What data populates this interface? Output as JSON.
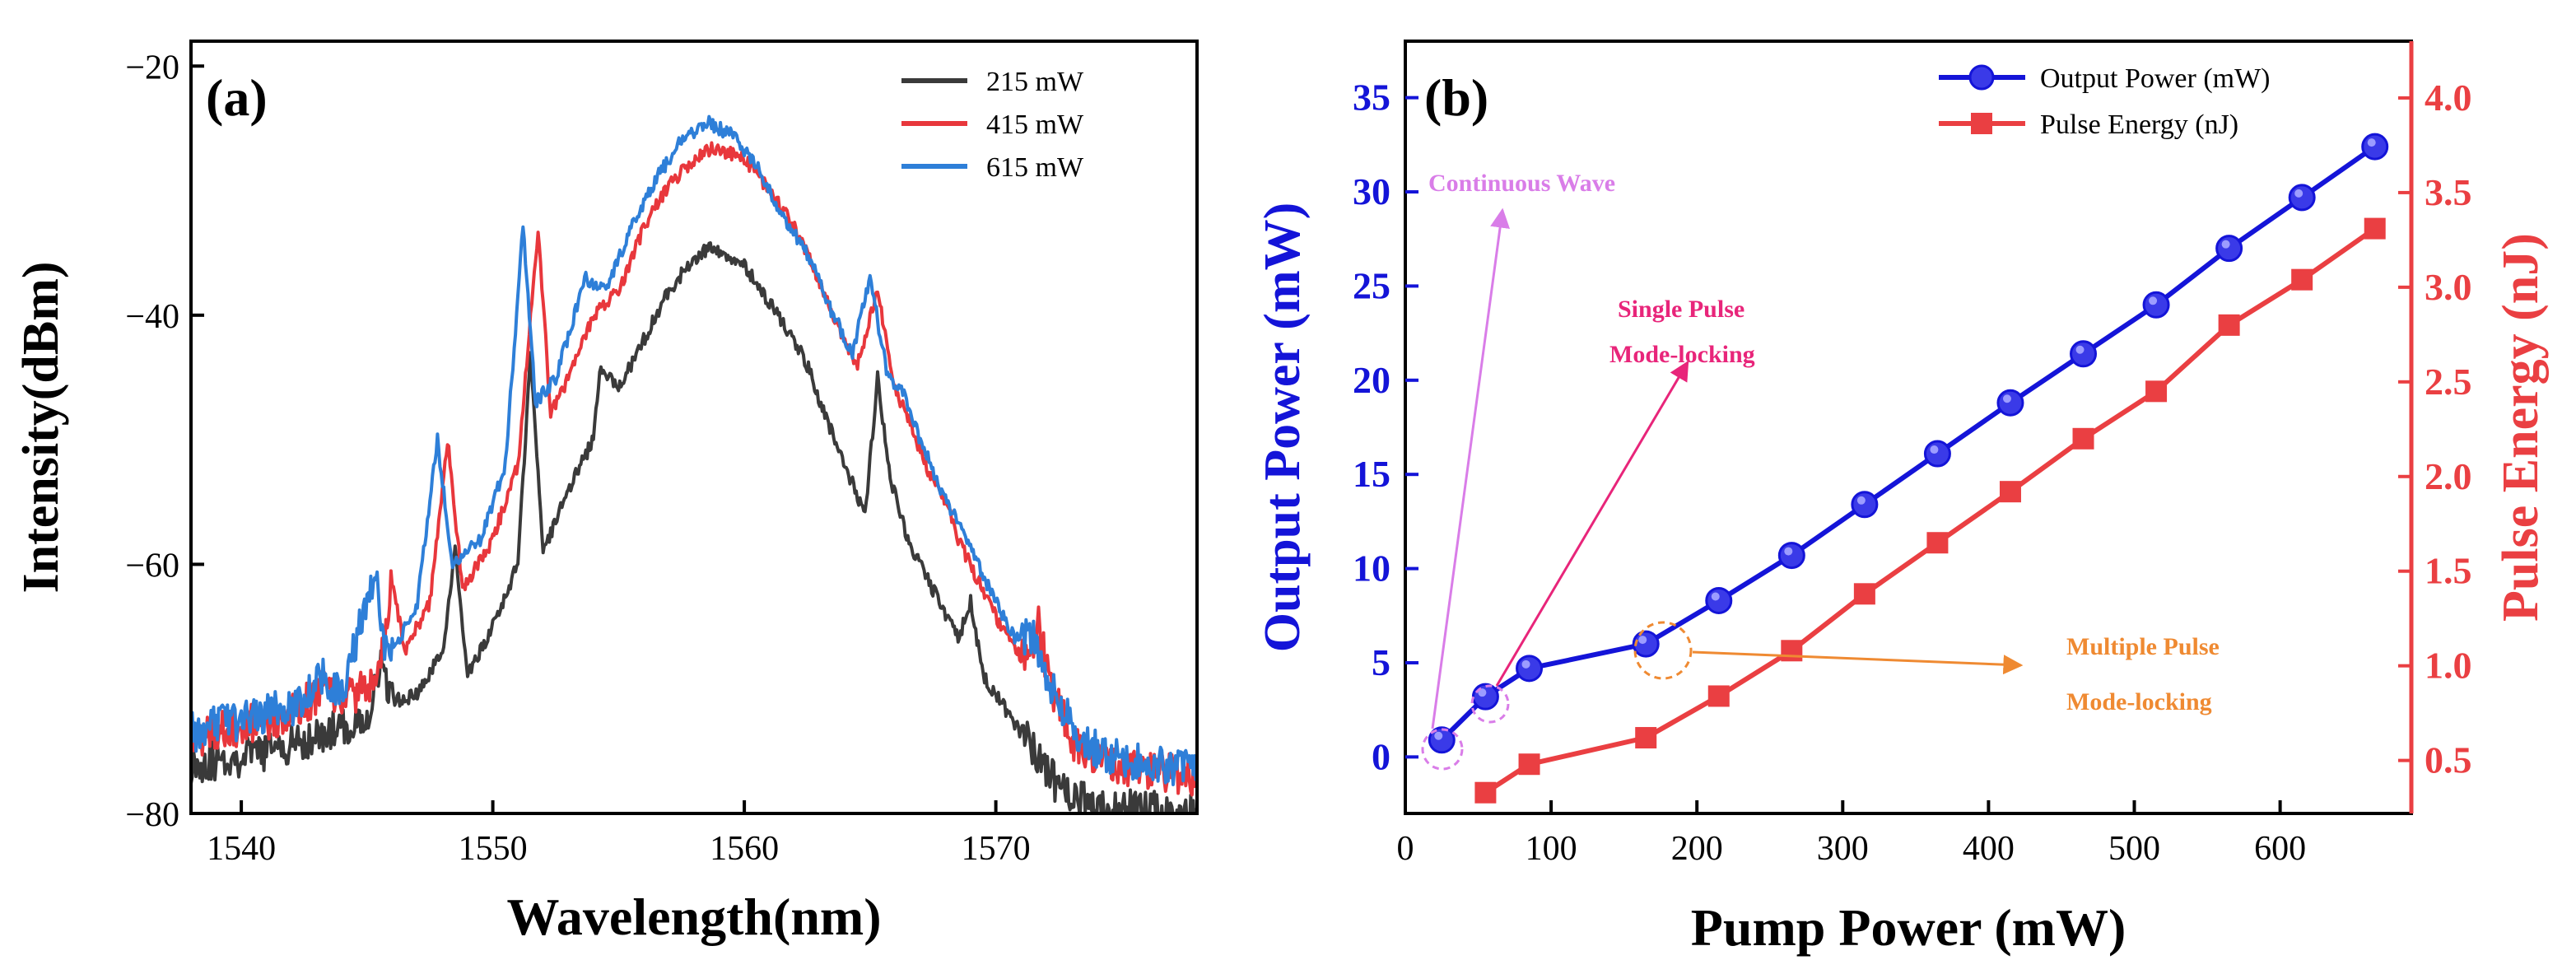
{
  "colors": {
    "series_215": "#3a3a3a",
    "series_415": "#e8373c",
    "series_615": "#2e7fd8",
    "output_power": "#1414d8",
    "pulse_energy": "#ea3f42",
    "cw": "#d97de8",
    "single": "#e8257a",
    "multiple": "#ef8a32"
  },
  "chart_data": [
    {
      "type": "line",
      "panel_label": "(a)",
      "xlabel": "Wavelength(nm)",
      "ylabel": "Intensity(dBm)",
      "xlim": [
        1538,
        1578
      ],
      "ylim": [
        -80,
        -18
      ],
      "xticks": [
        1540,
        1550,
        1560,
        1570
      ],
      "xtick_labels": [
        "1540",
        "1550",
        "1560",
        "1570"
      ],
      "yticks": [
        -80,
        -60,
        -40,
        -20
      ],
      "ytick_labels": [
        "−80",
        "−60",
        "−40",
        "−20"
      ],
      "legend_position": "top-right",
      "series": [
        {
          "name": "215 mW",
          "color_key": "series_215",
          "points": [
            [
              1538,
              -76
            ],
            [
              1540,
              -75.5
            ],
            [
              1542,
              -74.5
            ],
            [
              1543.5,
              -73.5
            ],
            [
              1545,
              -72.5
            ],
            [
              1545.5,
              -68
            ],
            [
              1546,
              -71
            ],
            [
              1547,
              -70.5
            ],
            [
              1548,
              -67
            ],
            [
              1548.5,
              -59
            ],
            [
              1549,
              -69
            ],
            [
              1550,
              -65
            ],
            [
              1551,
              -60
            ],
            [
              1551.5,
              -43
            ],
            [
              1552,
              -59
            ],
            [
              1553,
              -54
            ],
            [
              1554,
              -50
            ],
            [
              1554.3,
              -44
            ],
            [
              1555,
              -46
            ],
            [
              1556,
              -42
            ],
            [
              1557,
              -38
            ],
            [
              1558,
              -35.5
            ],
            [
              1558.7,
              -34.5
            ],
            [
              1560,
              -36
            ],
            [
              1561,
              -39
            ],
            [
              1562,
              -42
            ],
            [
              1562.5,
              -44
            ],
            [
              1563,
              -47
            ],
            [
              1564,
              -52
            ],
            [
              1564.8,
              -56
            ],
            [
              1565.3,
              -45
            ],
            [
              1565.8,
              -53
            ],
            [
              1566.5,
              -58
            ],
            [
              1567.5,
              -62
            ],
            [
              1568.5,
              -66
            ],
            [
              1569,
              -63
            ],
            [
              1569.5,
              -69
            ],
            [
              1570.5,
              -72
            ],
            [
              1571.5,
              -75
            ],
            [
              1572.5,
              -78
            ],
            [
              1574,
              -79.5
            ],
            [
              1578,
              -80
            ]
          ]
        },
        {
          "name": "415 mW",
          "color_key": "series_415",
          "points": [
            [
              1538,
              -74
            ],
            [
              1540,
              -73
            ],
            [
              1542,
              -72
            ],
            [
              1543.3,
              -70
            ],
            [
              1544,
              -71
            ],
            [
              1545.5,
              -69
            ],
            [
              1546,
              -61
            ],
            [
              1546.5,
              -67
            ],
            [
              1547.5,
              -63
            ],
            [
              1548.2,
              -50
            ],
            [
              1548.8,
              -62
            ],
            [
              1550,
              -58
            ],
            [
              1551,
              -52
            ],
            [
              1551.8,
              -33
            ],
            [
              1552.3,
              -48
            ],
            [
              1553,
              -45
            ],
            [
              1554,
              -40
            ],
            [
              1555,
              -38
            ],
            [
              1556,
              -33
            ],
            [
              1557,
              -29.5
            ],
            [
              1558,
              -27.5
            ],
            [
              1558.8,
              -26.5
            ],
            [
              1560,
              -27.5
            ],
            [
              1561,
              -30
            ],
            [
              1562,
              -33
            ],
            [
              1562.7,
              -36
            ],
            [
              1563.5,
              -40
            ],
            [
              1564.5,
              -44
            ],
            [
              1565.3,
              -38
            ],
            [
              1566,
              -46
            ],
            [
              1566.5,
              -48
            ],
            [
              1567.2,
              -52
            ],
            [
              1568,
              -55
            ],
            [
              1568.5,
              -58
            ],
            [
              1569,
              -60
            ],
            [
              1569.7,
              -63
            ],
            [
              1570.5,
              -66
            ],
            [
              1571.2,
              -68
            ],
            [
              1571.7,
              -65
            ],
            [
              1572.2,
              -70
            ],
            [
              1573,
              -74
            ],
            [
              1574,
              -76
            ],
            [
              1576,
              -76.5
            ],
            [
              1578,
              -77
            ]
          ]
        },
        {
          "name": "615 mW",
          "color_key": "series_615",
          "points": [
            [
              1538,
              -73.5
            ],
            [
              1540,
              -72.5
            ],
            [
              1542,
              -71.5
            ],
            [
              1543.3,
              -69
            ],
            [
              1544,
              -70.5
            ],
            [
              1545.3,
              -60.5
            ],
            [
              1545.8,
              -68
            ],
            [
              1547,
              -63
            ],
            [
              1547.8,
              -50
            ],
            [
              1548.4,
              -60
            ],
            [
              1549.5,
              -58
            ],
            [
              1550.5,
              -52
            ],
            [
              1551.2,
              -33
            ],
            [
              1551.7,
              -47
            ],
            [
              1552.5,
              -45
            ],
            [
              1553.7,
              -37
            ],
            [
              1554.5,
              -38
            ],
            [
              1555.5,
              -33
            ],
            [
              1556.5,
              -29
            ],
            [
              1557.5,
              -26
            ],
            [
              1558.5,
              -24.5
            ],
            [
              1559.5,
              -25.5
            ],
            [
              1560.5,
              -28
            ],
            [
              1561.5,
              -32
            ],
            [
              1562.5,
              -35
            ],
            [
              1563.3,
              -39
            ],
            [
              1564.3,
              -43
            ],
            [
              1565,
              -37
            ],
            [
              1565.7,
              -45
            ],
            [
              1566.3,
              -46
            ],
            [
              1567,
              -50
            ],
            [
              1567.8,
              -54
            ],
            [
              1568.6,
              -57
            ],
            [
              1569.3,
              -60
            ],
            [
              1570,
              -63
            ],
            [
              1570.8,
              -66
            ],
            [
              1571.5,
              -66
            ],
            [
              1572.2,
              -70
            ],
            [
              1573,
              -73
            ],
            [
              1574,
              -75
            ],
            [
              1576,
              -76
            ],
            [
              1578,
              -76.5
            ]
          ]
        }
      ]
    },
    {
      "type": "line",
      "panel_label": "(b)",
      "xlabel": "Pump Power (mW)",
      "ylabel": "Output Power (mW)",
      "ylabel_right": "Pulse Energy (nJ)",
      "xlim": [
        0,
        690
      ],
      "ylim": [
        -3,
        38
      ],
      "ylim_right": [
        0.22,
        4.3
      ],
      "xticks": [
        0,
        100,
        200,
        300,
        400,
        500,
        600
      ],
      "yticks": [
        0,
        5,
        10,
        15,
        20,
        25,
        30,
        35
      ],
      "yticks_right": [
        "0.5",
        "1.0",
        "1.5",
        "2.0",
        "2.5",
        "3.0",
        "3.5",
        "4.0"
      ],
      "legend_position": "top-right",
      "series": [
        {
          "name": "Output Power (mW)",
          "axis": "left",
          "marker": "circle",
          "color_key": "output_power",
          "x": [
            25,
            55,
            85,
            165,
            215,
            265,
            315,
            365,
            415,
            465,
            515,
            565,
            615,
            665
          ],
          "values": [
            0.9,
            3.2,
            4.7,
            6.0,
            8.3,
            10.7,
            13.4,
            16.1,
            18.8,
            21.4,
            24.0,
            27.0,
            29.7,
            32.4
          ]
        },
        {
          "name": "Pulse Energy (nJ)",
          "axis": "right",
          "marker": "square",
          "color_key": "pulse_energy",
          "x": [
            55,
            85,
            165,
            215,
            265,
            315,
            365,
            415,
            465,
            515,
            565,
            615,
            665
          ],
          "values": [
            0.33,
            0.48,
            0.62,
            0.84,
            1.08,
            1.38,
            1.65,
            1.92,
            2.2,
            2.45,
            2.8,
            3.04,
            3.31
          ]
        }
      ],
      "annotations": {
        "continuous_wave": "Continuous Wave",
        "single_pulse_1": "Single Pulse",
        "single_pulse_2": "Mode-locking",
        "multiple_pulse_1": "Multiple Pulse",
        "multiple_pulse_2": "Mode-locking"
      }
    }
  ]
}
